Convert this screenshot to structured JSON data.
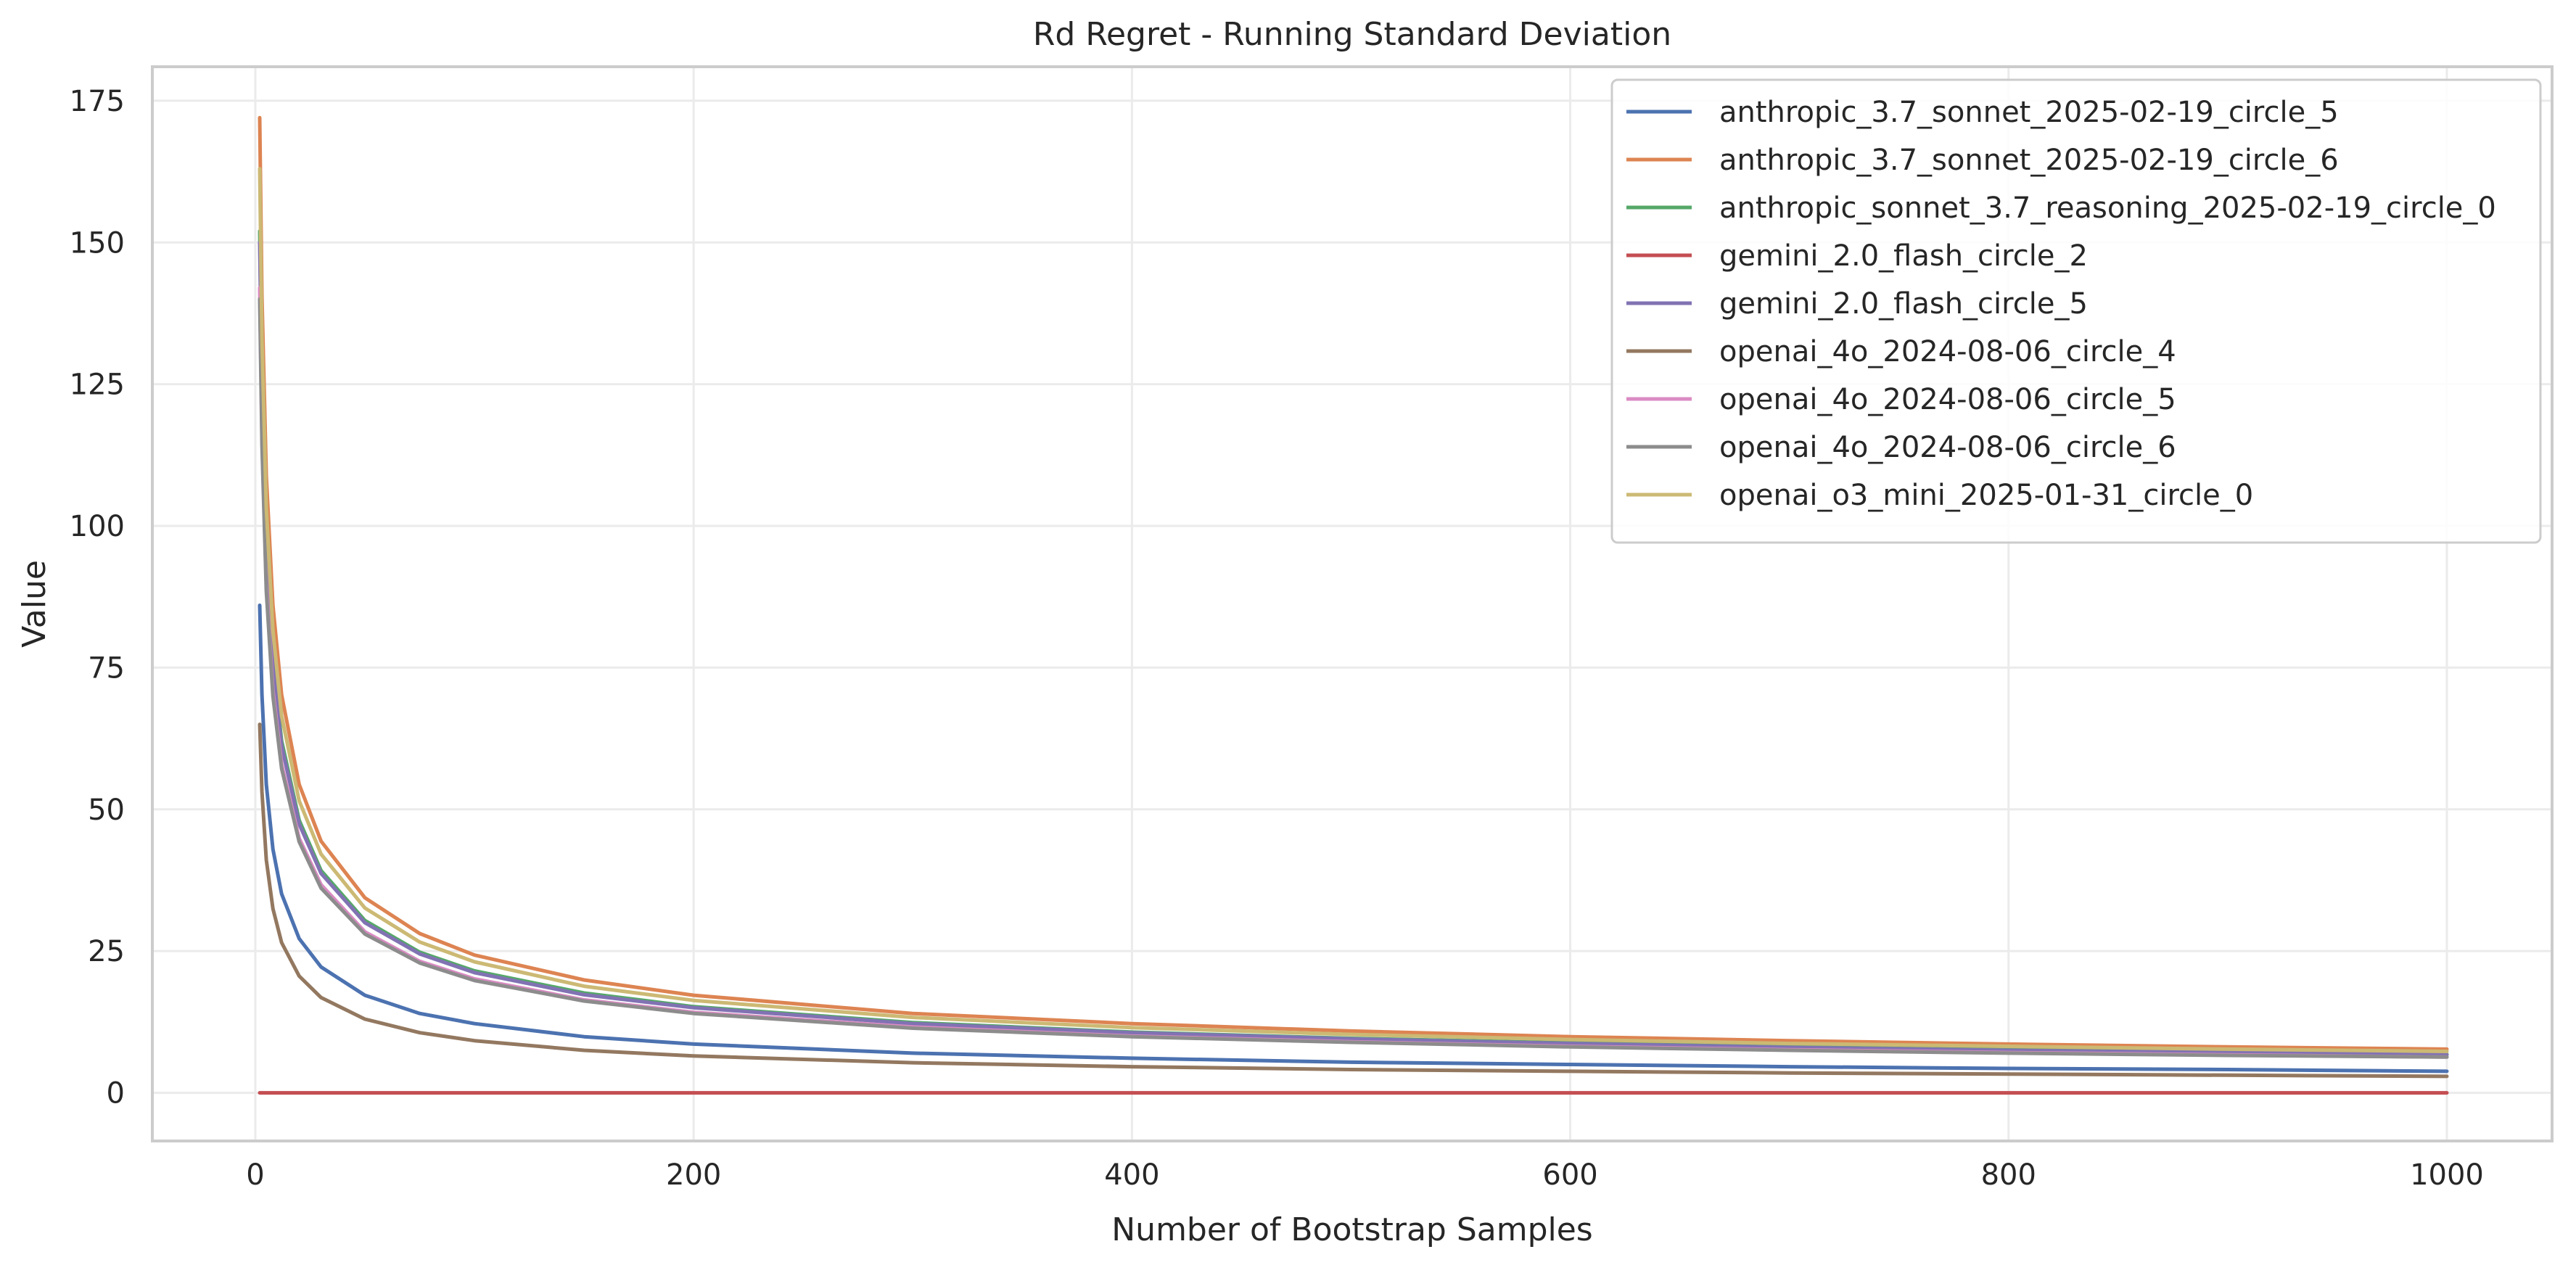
{
  "chart_data": {
    "type": "line",
    "title": "Rd Regret - Running Standard Deviation",
    "xlabel": "Number of Bootstrap Samples",
    "ylabel": "Value",
    "xlim": [
      -47,
      1048
    ],
    "ylim": [
      -8.5,
      181
    ],
    "xticks": [
      0,
      200,
      400,
      600,
      800,
      1000
    ],
    "yticks": [
      0,
      25,
      50,
      75,
      100,
      125,
      150,
      175
    ],
    "grid": true,
    "legend_position": "top-right",
    "x": [
      2,
      3,
      5,
      8,
      12,
      20,
      30,
      50,
      75,
      100,
      150,
      200,
      300,
      400,
      500,
      600,
      700,
      800,
      900,
      1000
    ],
    "series": [
      {
        "name": "anthropic_3.7_sonnet_2025-02-19_circle_5",
        "color": "#4c72b0",
        "values": [
          86.0,
          70.2,
          54.4,
          43.0,
          35.1,
          27.2,
          22.2,
          17.2,
          14.0,
          12.2,
          9.9,
          8.6,
          7.0,
          6.1,
          5.4,
          5.0,
          4.6,
          4.3,
          4.1,
          3.8
        ]
      },
      {
        "name": "anthropic_3.7_sonnet_2025-02-19_circle_6",
        "color": "#dd8452",
        "values": [
          172.0,
          140.4,
          108.8,
          86.0,
          70.2,
          54.4,
          44.4,
          34.4,
          28.1,
          24.3,
          19.9,
          17.2,
          14.0,
          12.2,
          10.9,
          9.9,
          9.2,
          8.6,
          8.1,
          7.7
        ]
      },
      {
        "name": "anthropic_sonnet_3.7_reasoning_2025-02-19_circle_0",
        "color": "#55a868",
        "values": [
          152.0,
          124.1,
          96.1,
          76.0,
          62.1,
          48.1,
          39.2,
          30.4,
          24.8,
          21.5,
          17.6,
          15.2,
          12.4,
          10.7,
          9.6,
          8.8,
          8.1,
          7.6,
          7.2,
          6.8
        ]
      },
      {
        "name": "gemini_2.0_flash_circle_2",
        "color": "#c44e52",
        "values": [
          0,
          0,
          0,
          0,
          0,
          0,
          0,
          0,
          0,
          0,
          0,
          0,
          0,
          0,
          0,
          0,
          0,
          0,
          0,
          0
        ]
      },
      {
        "name": "gemini_2.0_flash_circle_5",
        "color": "#8172b3",
        "values": [
          150.0,
          122.5,
          94.9,
          75.0,
          61.2,
          47.4,
          38.7,
          30.0,
          24.5,
          21.2,
          17.3,
          15.0,
          12.2,
          10.6,
          9.5,
          8.7,
          8.0,
          7.5,
          7.1,
          6.7
        ]
      },
      {
        "name": "openai_4o_2024-08-06_circle_4",
        "color": "#937860",
        "values": [
          65.0,
          53.1,
          41.1,
          32.5,
          26.5,
          20.6,
          16.8,
          13.0,
          10.6,
          9.2,
          7.5,
          6.5,
          5.3,
          4.6,
          4.1,
          3.8,
          3.5,
          3.3,
          3.1,
          2.9
        ]
      },
      {
        "name": "openai_4o_2024-08-06_circle_5",
        "color": "#da8bc3",
        "values": [
          142.0,
          115.9,
          89.8,
          71.0,
          58.0,
          44.9,
          36.7,
          28.4,
          23.2,
          20.1,
          16.4,
          14.2,
          11.6,
          10.0,
          9.0,
          8.2,
          7.6,
          7.1,
          6.7,
          6.3
        ]
      },
      {
        "name": "openai_4o_2024-08-06_circle_6",
        "color": "#8c8c8c",
        "values": [
          140.0,
          114.3,
          88.5,
          70.0,
          57.2,
          44.3,
          36.1,
          28.0,
          22.9,
          19.8,
          16.2,
          14.0,
          11.4,
          9.9,
          8.9,
          8.1,
          7.5,
          7.0,
          6.6,
          6.3
        ]
      },
      {
        "name": "openai_o3_mini_2025-01-31_circle_0",
        "color": "#ccb974",
        "values": [
          163.0,
          133.1,
          103.1,
          81.5,
          66.5,
          51.5,
          42.1,
          32.6,
          26.6,
          23.1,
          18.8,
          16.3,
          13.3,
          11.5,
          10.3,
          9.4,
          8.7,
          8.2,
          7.7,
          7.3
        ]
      }
    ]
  }
}
